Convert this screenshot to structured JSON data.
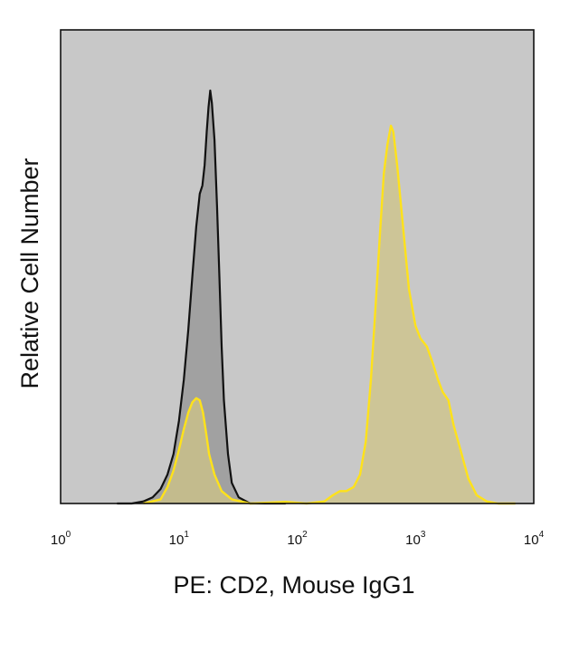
{
  "chart_data": {
    "type": "area",
    "title": "",
    "xlabel": "PE: CD2, Mouse IgG1",
    "ylabel": "Relative Cell Number",
    "x_scale": "log",
    "xlim": [
      1,
      10000
    ],
    "ylim": [
      0,
      1
    ],
    "x_ticks": [
      {
        "base": "10",
        "exp": "0",
        "value": 1
      },
      {
        "base": "10",
        "exp": "1",
        "value": 10
      },
      {
        "base": "10",
        "exp": "2",
        "value": 100
      },
      {
        "base": "10",
        "exp": "3",
        "value": 1000
      },
      {
        "base": "10",
        "exp": "4",
        "value": 10000
      }
    ],
    "grid": false,
    "legend": "none",
    "colors": {
      "background": "#c8c8c8",
      "frame": "#111111",
      "series_0_line": "#111111",
      "series_0_fill": "#9a9a9a",
      "series_1_line": "#ffe21a",
      "series_1_fill": "#cfc487"
    },
    "series": [
      {
        "points": [
          [
            3,
            0.0
          ],
          [
            4,
            0.0
          ],
          [
            5,
            0.005
          ],
          [
            6,
            0.015
          ],
          [
            7,
            0.035
          ],
          [
            8,
            0.07
          ],
          [
            9,
            0.12
          ],
          [
            10,
            0.2
          ],
          [
            11,
            0.3
          ],
          [
            12,
            0.42
          ],
          [
            13,
            0.55
          ],
          [
            14,
            0.67
          ],
          [
            15,
            0.75
          ],
          [
            15.8,
            0.77
          ],
          [
            16.5,
            0.82
          ],
          [
            17.2,
            0.9
          ],
          [
            17.8,
            0.96
          ],
          [
            18.4,
            1.0
          ],
          [
            19,
            0.97
          ],
          [
            20,
            0.88
          ],
          [
            21,
            0.72
          ],
          [
            22,
            0.55
          ],
          [
            23,
            0.38
          ],
          [
            24,
            0.25
          ],
          [
            26,
            0.12
          ],
          [
            28,
            0.05
          ],
          [
            32,
            0.015
          ],
          [
            40,
            0.0
          ],
          [
            80,
            0.0
          ]
        ]
      },
      {
        "points": [
          [
            5,
            0.0
          ],
          [
            7,
            0.01
          ],
          [
            8,
            0.04
          ],
          [
            9,
            0.08
          ],
          [
            10,
            0.13
          ],
          [
            11,
            0.18
          ],
          [
            12,
            0.22
          ],
          [
            13,
            0.245
          ],
          [
            14,
            0.255
          ],
          [
            15,
            0.25
          ],
          [
            16,
            0.22
          ],
          [
            17,
            0.17
          ],
          [
            18,
            0.12
          ],
          [
            20,
            0.07
          ],
          [
            23,
            0.03
          ],
          [
            28,
            0.01
          ],
          [
            40,
            0.0
          ],
          [
            80,
            0.004
          ],
          [
            120,
            0.0
          ],
          [
            170,
            0.005
          ],
          [
            200,
            0.02
          ],
          [
            230,
            0.03
          ],
          [
            260,
            0.03
          ],
          [
            300,
            0.04
          ],
          [
            340,
            0.07
          ],
          [
            380,
            0.15
          ],
          [
            420,
            0.3
          ],
          [
            460,
            0.48
          ],
          [
            500,
            0.65
          ],
          [
            540,
            0.8
          ],
          [
            580,
            0.87
          ],
          [
            620,
            0.915
          ],
          [
            650,
            0.9
          ],
          [
            700,
            0.82
          ],
          [
            780,
            0.68
          ],
          [
            880,
            0.52
          ],
          [
            1000,
            0.43
          ],
          [
            1100,
            0.4
          ],
          [
            1250,
            0.38
          ],
          [
            1400,
            0.34
          ],
          [
            1550,
            0.3
          ],
          [
            1700,
            0.27
          ],
          [
            1900,
            0.25
          ],
          [
            2100,
            0.19
          ],
          [
            2400,
            0.13
          ],
          [
            2800,
            0.06
          ],
          [
            3300,
            0.02
          ],
          [
            4000,
            0.005
          ],
          [
            5000,
            0.0
          ],
          [
            7000,
            0.0
          ]
        ]
      }
    ]
  }
}
